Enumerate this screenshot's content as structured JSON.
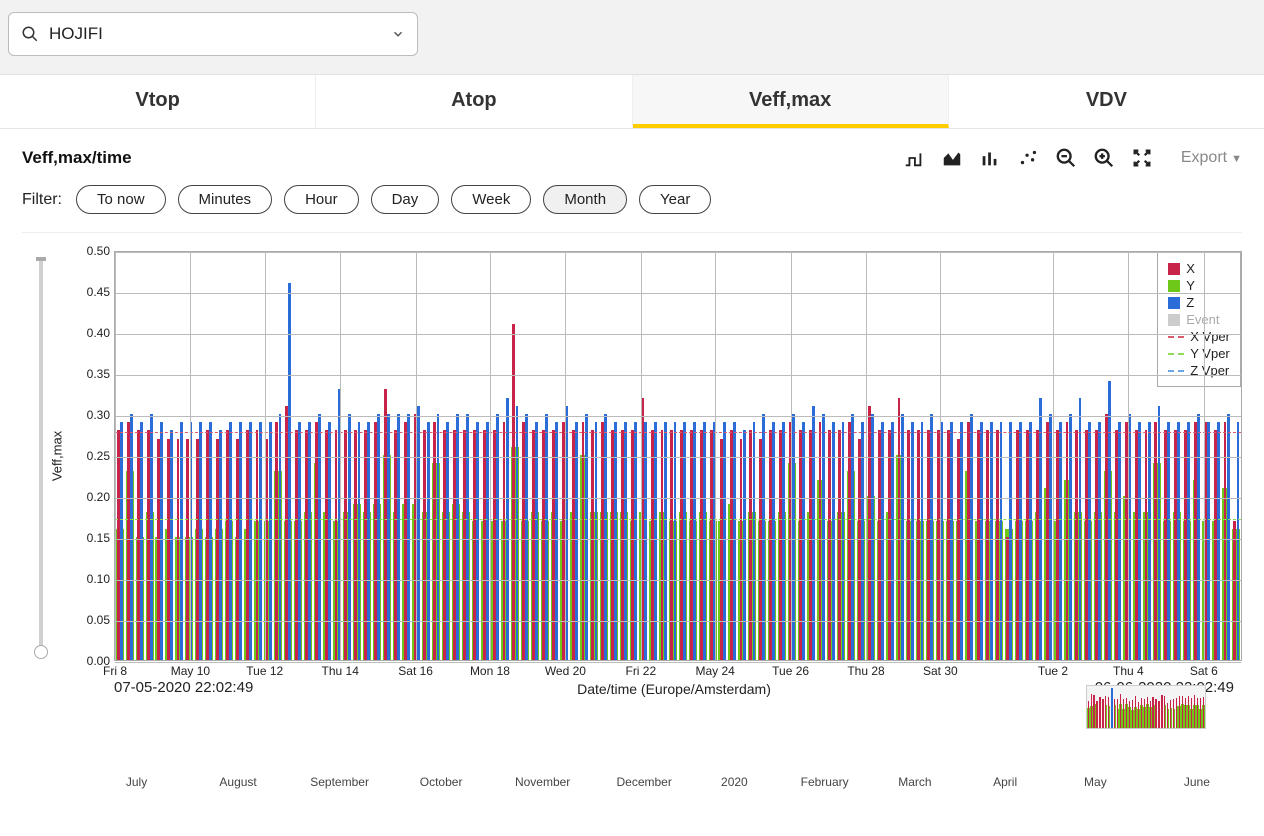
{
  "selector": {
    "value": "HOJIFI"
  },
  "tabs": [
    {
      "id": "vtop",
      "label": "Vtop",
      "active": false
    },
    {
      "id": "atop",
      "label": "Atop",
      "active": false
    },
    {
      "id": "veffmax",
      "label": "Veff,max",
      "active": true
    },
    {
      "id": "vdv",
      "label": "VDV",
      "active": false
    }
  ],
  "panel": {
    "title": "Veff,max/time",
    "export_label": "Export"
  },
  "filter": {
    "label": "Filter:",
    "options": [
      "To now",
      "Minutes",
      "Hour",
      "Day",
      "Week",
      "Month",
      "Year"
    ],
    "active": "Month"
  },
  "chart": {
    "type": "bar",
    "y_axis_label": "Veff,max",
    "x_axis_label": "Date/time (Europe/Amsterdam)",
    "ylim": [
      0.0,
      0.5
    ],
    "ytick_step": 0.05,
    "y_ticks": [
      "0.00",
      "0.05",
      "0.10",
      "0.15",
      "0.20",
      "0.25",
      "0.30",
      "0.35",
      "0.40",
      "0.45",
      "0.50"
    ],
    "x_ticks": [
      {
        "pos": 0.0,
        "label": "Fri 8"
      },
      {
        "pos": 0.067,
        "label": "May 10"
      },
      {
        "pos": 0.133,
        "label": "Tue 12"
      },
      {
        "pos": 0.2,
        "label": "Thu 14"
      },
      {
        "pos": 0.267,
        "label": "Sat 16"
      },
      {
        "pos": 0.333,
        "label": "Mon 18"
      },
      {
        "pos": 0.4,
        "label": "Wed 20"
      },
      {
        "pos": 0.467,
        "label": "Fri 22"
      },
      {
        "pos": 0.533,
        "label": "May 24"
      },
      {
        "pos": 0.6,
        "label": "Tue 26"
      },
      {
        "pos": 0.667,
        "label": "Thu 28"
      },
      {
        "pos": 0.733,
        "label": "Sat 30"
      },
      {
        "pos": 0.833,
        "label": "Tue 2"
      },
      {
        "pos": 0.9,
        "label": "Thu 4"
      },
      {
        "pos": 0.967,
        "label": "Sat 6"
      }
    ],
    "range_start": "07-05-2020  22:02:49",
    "range_end": "06-06-2020  22:02:49",
    "colors": {
      "x": "#c8244a",
      "y": "#6dc81a",
      "z": "#2a6dd8",
      "event": "#bbbbbb",
      "x_vper": "#d85c6e",
      "y_vper": "#8fd95c",
      "z_vper": "#6aa6e8",
      "grid": "#bbbbbb",
      "background": "#ffffff"
    },
    "ref_lines": {
      "z_vper": 0.3,
      "x_vper": 0.28,
      "y_vper": 0.175
    },
    "legend": [
      {
        "type": "sw",
        "color_key": "x",
        "label": "X"
      },
      {
        "type": "sw",
        "color_key": "y",
        "label": "Y"
      },
      {
        "type": "sw",
        "color_key": "z",
        "label": "Z"
      },
      {
        "type": "sw",
        "color_key": "event",
        "label": "Event",
        "muted": true
      },
      {
        "type": "ln",
        "color_key": "x_vper",
        "label": "X Vper"
      },
      {
        "type": "ln",
        "color_key": "y_vper",
        "label": "Y Vper"
      },
      {
        "type": "ln",
        "color_key": "z_vper",
        "label": "Z Vper"
      }
    ],
    "series": [
      {
        "y": 0.16,
        "x": 0.28,
        "z": 0.29
      },
      {
        "y": 0.23,
        "x": 0.29,
        "z": 0.3
      },
      {
        "y": 0.15,
        "x": 0.28,
        "z": 0.29
      },
      {
        "y": 0.18,
        "x": 0.28,
        "z": 0.3
      },
      {
        "y": 0.15,
        "x": 0.27,
        "z": 0.29
      },
      {
        "y": 0.16,
        "x": 0.27,
        "z": 0.28
      },
      {
        "y": 0.15,
        "x": 0.27,
        "z": 0.29
      },
      {
        "y": 0.15,
        "x": 0.27,
        "z": 0.29
      },
      {
        "y": 0.16,
        "x": 0.27,
        "z": 0.29
      },
      {
        "y": 0.15,
        "x": 0.28,
        "z": 0.29
      },
      {
        "y": 0.16,
        "x": 0.27,
        "z": 0.28
      },
      {
        "y": 0.17,
        "x": 0.28,
        "z": 0.29
      },
      {
        "y": 0.15,
        "x": 0.27,
        "z": 0.29
      },
      {
        "y": 0.16,
        "x": 0.28,
        "z": 0.29
      },
      {
        "y": 0.17,
        "x": 0.28,
        "z": 0.29
      },
      {
        "y": 0.17,
        "x": 0.27,
        "z": 0.29
      },
      {
        "y": 0.23,
        "x": 0.29,
        "z": 0.3
      },
      {
        "y": 0.17,
        "x": 0.31,
        "z": 0.46
      },
      {
        "y": 0.17,
        "x": 0.28,
        "z": 0.29
      },
      {
        "y": 0.18,
        "x": 0.28,
        "z": 0.29
      },
      {
        "y": 0.24,
        "x": 0.29,
        "z": 0.3
      },
      {
        "y": 0.18,
        "x": 0.28,
        "z": 0.29
      },
      {
        "y": 0.17,
        "x": 0.28,
        "z": 0.33
      },
      {
        "y": 0.18,
        "x": 0.28,
        "z": 0.3
      },
      {
        "y": 0.19,
        "x": 0.28,
        "z": 0.29
      },
      {
        "y": 0.18,
        "x": 0.28,
        "z": 0.29
      },
      {
        "y": 0.19,
        "x": 0.29,
        "z": 0.3
      },
      {
        "y": 0.25,
        "x": 0.33,
        "z": 0.3
      },
      {
        "y": 0.18,
        "x": 0.28,
        "z": 0.3
      },
      {
        "y": 0.19,
        "x": 0.29,
        "z": 0.3
      },
      {
        "y": 0.19,
        "x": 0.3,
        "z": 0.31
      },
      {
        "y": 0.18,
        "x": 0.28,
        "z": 0.29
      },
      {
        "y": 0.24,
        "x": 0.29,
        "z": 0.3
      },
      {
        "y": 0.18,
        "x": 0.28,
        "z": 0.29
      },
      {
        "y": 0.19,
        "x": 0.28,
        "z": 0.3
      },
      {
        "y": 0.18,
        "x": 0.28,
        "z": 0.3
      },
      {
        "y": 0.17,
        "x": 0.28,
        "z": 0.29
      },
      {
        "y": 0.17,
        "x": 0.28,
        "z": 0.29
      },
      {
        "y": 0.17,
        "x": 0.28,
        "z": 0.3
      },
      {
        "y": 0.17,
        "x": 0.29,
        "z": 0.32
      },
      {
        "y": 0.26,
        "x": 0.41,
        "z": 0.31
      },
      {
        "y": 0.17,
        "x": 0.29,
        "z": 0.3
      },
      {
        "y": 0.18,
        "x": 0.28,
        "z": 0.29
      },
      {
        "y": 0.17,
        "x": 0.28,
        "z": 0.3
      },
      {
        "y": 0.18,
        "x": 0.28,
        "z": 0.29
      },
      {
        "y": 0.17,
        "x": 0.29,
        "z": 0.31
      },
      {
        "y": 0.18,
        "x": 0.28,
        "z": 0.29
      },
      {
        "y": 0.25,
        "x": 0.29,
        "z": 0.3
      },
      {
        "y": 0.18,
        "x": 0.28,
        "z": 0.29
      },
      {
        "y": 0.18,
        "x": 0.29,
        "z": 0.3
      },
      {
        "y": 0.18,
        "x": 0.28,
        "z": 0.29
      },
      {
        "y": 0.18,
        "x": 0.28,
        "z": 0.29
      },
      {
        "y": 0.17,
        "x": 0.28,
        "z": 0.29
      },
      {
        "y": 0.18,
        "x": 0.32,
        "z": 0.29
      },
      {
        "y": 0.17,
        "x": 0.28,
        "z": 0.29
      },
      {
        "y": 0.18,
        "x": 0.28,
        "z": 0.29
      },
      {
        "y": 0.17,
        "x": 0.28,
        "z": 0.29
      },
      {
        "y": 0.18,
        "x": 0.28,
        "z": 0.29
      },
      {
        "y": 0.17,
        "x": 0.28,
        "z": 0.29
      },
      {
        "y": 0.18,
        "x": 0.28,
        "z": 0.29
      },
      {
        "y": 0.17,
        "x": 0.28,
        "z": 0.29
      },
      {
        "y": 0.17,
        "x": 0.27,
        "z": 0.29
      },
      {
        "y": 0.19,
        "x": 0.28,
        "z": 0.29
      },
      {
        "y": 0.17,
        "x": 0.27,
        "z": 0.28
      },
      {
        "y": 0.18,
        "x": 0.28,
        "z": 0.29
      },
      {
        "y": 0.17,
        "x": 0.27,
        "z": 0.3
      },
      {
        "y": 0.17,
        "x": 0.28,
        "z": 0.29
      },
      {
        "y": 0.18,
        "x": 0.28,
        "z": 0.29
      },
      {
        "y": 0.24,
        "x": 0.29,
        "z": 0.3
      },
      {
        "y": 0.17,
        "x": 0.28,
        "z": 0.29
      },
      {
        "y": 0.18,
        "x": 0.28,
        "z": 0.31
      },
      {
        "y": 0.22,
        "x": 0.29,
        "z": 0.3
      },
      {
        "y": 0.17,
        "x": 0.28,
        "z": 0.29
      },
      {
        "y": 0.18,
        "x": 0.28,
        "z": 0.29
      },
      {
        "y": 0.23,
        "x": 0.29,
        "z": 0.3
      },
      {
        "y": 0.17,
        "x": 0.27,
        "z": 0.29
      },
      {
        "y": 0.2,
        "x": 0.31,
        "z": 0.3
      },
      {
        "y": 0.17,
        "x": 0.28,
        "z": 0.29
      },
      {
        "y": 0.18,
        "x": 0.28,
        "z": 0.29
      },
      {
        "y": 0.25,
        "x": 0.32,
        "z": 0.3
      },
      {
        "y": 0.17,
        "x": 0.28,
        "z": 0.29
      },
      {
        "y": 0.17,
        "x": 0.28,
        "z": 0.29
      },
      {
        "y": 0.17,
        "x": 0.28,
        "z": 0.3
      },
      {
        "y": 0.17,
        "x": 0.28,
        "z": 0.29
      },
      {
        "y": 0.17,
        "x": 0.28,
        "z": 0.29
      },
      {
        "y": 0.17,
        "x": 0.27,
        "z": 0.29
      },
      {
        "y": 0.23,
        "x": 0.29,
        "z": 0.3
      },
      {
        "y": 0.17,
        "x": 0.28,
        "z": 0.29
      },
      {
        "y": 0.17,
        "x": 0.28,
        "z": 0.29
      },
      {
        "y": 0.17,
        "x": 0.28,
        "z": 0.29
      },
      {
        "y": 0.16,
        "x": 0.15,
        "z": 0.29
      },
      {
        "y": 0.17,
        "x": 0.28,
        "z": 0.29
      },
      {
        "y": 0.17,
        "x": 0.28,
        "z": 0.29
      },
      {
        "y": 0.18,
        "x": 0.28,
        "z": 0.32
      },
      {
        "y": 0.21,
        "x": 0.29,
        "z": 0.3
      },
      {
        "y": 0.17,
        "x": 0.28,
        "z": 0.29
      },
      {
        "y": 0.22,
        "x": 0.29,
        "z": 0.3
      },
      {
        "y": 0.18,
        "x": 0.28,
        "z": 0.32
      },
      {
        "y": 0.17,
        "x": 0.28,
        "z": 0.29
      },
      {
        "y": 0.18,
        "x": 0.28,
        "z": 0.29
      },
      {
        "y": 0.23,
        "x": 0.3,
        "z": 0.34
      },
      {
        "y": 0.18,
        "x": 0.28,
        "z": 0.29
      },
      {
        "y": 0.2,
        "x": 0.29,
        "z": 0.3
      },
      {
        "y": 0.18,
        "x": 0.28,
        "z": 0.29
      },
      {
        "y": 0.18,
        "x": 0.28,
        "z": 0.29
      },
      {
        "y": 0.24,
        "x": 0.29,
        "z": 0.31
      },
      {
        "y": 0.17,
        "x": 0.28,
        "z": 0.29
      },
      {
        "y": 0.18,
        "x": 0.28,
        "z": 0.29
      },
      {
        "y": 0.17,
        "x": 0.28,
        "z": 0.29
      },
      {
        "y": 0.22,
        "x": 0.29,
        "z": 0.3
      },
      {
        "y": 0.17,
        "x": 0.29,
        "z": 0.29
      },
      {
        "y": 0.17,
        "x": 0.28,
        "z": 0.29
      },
      {
        "y": 0.21,
        "x": 0.29,
        "z": 0.3
      },
      {
        "y": 0.16,
        "x": 0.17,
        "z": 0.29
      }
    ]
  },
  "overview": {
    "ticks": [
      {
        "pos": 0.02,
        "label": "July"
      },
      {
        "pos": 0.11,
        "label": "August"
      },
      {
        "pos": 0.2,
        "label": "September"
      },
      {
        "pos": 0.29,
        "label": "October"
      },
      {
        "pos": 0.38,
        "label": "November"
      },
      {
        "pos": 0.47,
        "label": "December"
      },
      {
        "pos": 0.55,
        "label": "2020"
      },
      {
        "pos": 0.63,
        "label": "February"
      },
      {
        "pos": 0.71,
        "label": "March"
      },
      {
        "pos": 0.79,
        "label": "April"
      },
      {
        "pos": 0.87,
        "label": "May"
      },
      {
        "pos": 0.96,
        "label": "June"
      }
    ]
  }
}
